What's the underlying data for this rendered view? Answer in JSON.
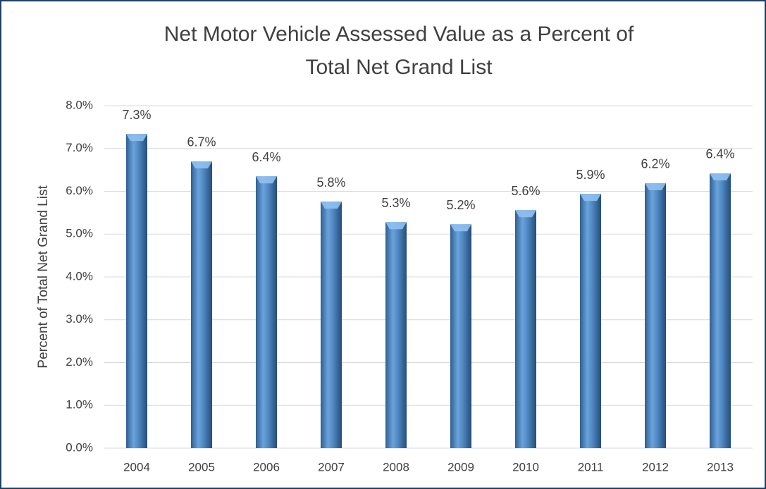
{
  "chart_data": {
    "type": "bar",
    "title": [
      "Net Motor Vehicle Assessed Value as a Percent of",
      "Total Net Grand List"
    ],
    "y_label": "Percent of Total Net Grand List",
    "categories": [
      "2004",
      "2005",
      "2006",
      "2007",
      "2008",
      "2009",
      "2010",
      "2011",
      "2012",
      "2013"
    ],
    "values": [
      7.34,
      6.7,
      6.35,
      5.76,
      5.28,
      5.23,
      5.56,
      5.94,
      6.19,
      6.42
    ],
    "value_labels": [
      "7.3%",
      "6.7%",
      "6.4%",
      "5.8%",
      "5.3%",
      "5.2%",
      "5.6%",
      "5.9%",
      "6.2%",
      "6.4%"
    ],
    "color": "#4f86c0",
    "ylim": [
      0,
      8
    ],
    "yticks": [
      {
        "value": 0,
        "label": "0.0%"
      },
      {
        "value": 1,
        "label": "1.0%"
      },
      {
        "value": 2,
        "label": "2.0%"
      },
      {
        "value": 3,
        "label": "3.0%"
      },
      {
        "value": 4,
        "label": "4.0%"
      },
      {
        "value": 5,
        "label": "5.0%"
      },
      {
        "value": 6,
        "label": "6.0%"
      },
      {
        "value": 7,
        "label": "7.0%"
      },
      {
        "value": 8,
        "label": "8.0%"
      }
    ],
    "grid": true
  }
}
